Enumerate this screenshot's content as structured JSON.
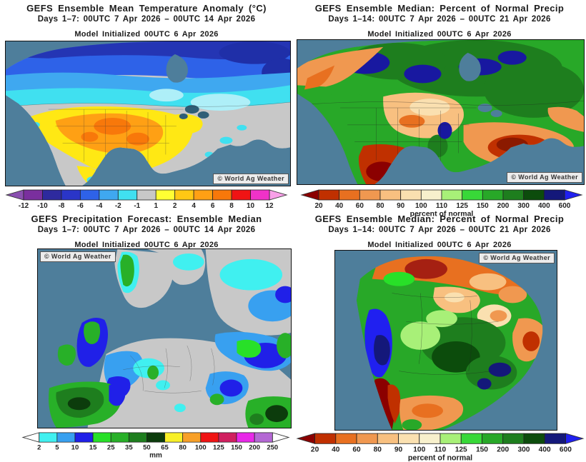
{
  "panels": [
    {
      "key": "north-america-temperature-anomaly",
      "title": "GEFS Ensemble Mean Temperature Anomaly (°C)",
      "subtitle": "Days 1–7: 00UTC 7 Apr 2026 – 00UTC 14 Apr 2026",
      "init_line": "Model Initialized 00UTC 6 Apr 2026",
      "region": "North America",
      "watermark": "© World Ag Weather",
      "watermark_position": "bottom-right",
      "colorbar": {
        "unit_label": "",
        "ticks": [
          "-12",
          "-10",
          "-8",
          "-6",
          "-4",
          "-2",
          "-1",
          "1",
          "2",
          "4",
          "6",
          "8",
          "10",
          "12"
        ],
        "segments": [
          "#7A2F9E",
          "#2E2A9E",
          "#2A35C8",
          "#2E62E8",
          "#3FA8F0",
          "#40E0F0",
          "#C8C8C8",
          "#FFFF33",
          "#FFC814",
          "#FFA014",
          "#F8780A",
          "#F01414",
          "#F032C8"
        ],
        "left_arrow": "#8A4FB0",
        "right_arrow": "#F8A0E8"
      }
    },
    {
      "key": "north-america-percent-normal-precip",
      "title": "GEFS Ensemble Median: Percent of Normal Precip",
      "subtitle": "Days 1–14: 00UTC 7 Apr 2026 – 00UTC 21 Apr 2026",
      "init_line": "Model Initialized 00UTC 6 Apr 2026",
      "region": "North America",
      "watermark": "© World Ag Weather",
      "watermark_position": "bottom-right",
      "colorbar": {
        "unit_label": "percent of normal",
        "ticks": [
          "20",
          "40",
          "60",
          "80",
          "90",
          "100",
          "110",
          "125",
          "150",
          "200",
          "300",
          "400",
          "600"
        ],
        "segments": [
          "#C03000",
          "#E87020",
          "#F09850",
          "#F8C080",
          "#FAE0B0",
          "#F7F0CC",
          "#A8F078",
          "#38D838",
          "#28A828",
          "#1E7E1E",
          "#0C4C0C",
          "#14187A"
        ],
        "left_arrow": "#8B0000",
        "right_arrow": "#2020F0"
      }
    },
    {
      "key": "europe-precipitation-forecast",
      "title": "GEFS Precipitation Forecast: Ensemble Median",
      "subtitle": "Days 1–7: 00UTC 7 Apr 2026 – 00UTC 14 Apr 2026",
      "init_line": "Model Initialized 00UTC 6 Apr 2026",
      "region": "Europe",
      "watermark": "© World Ag Weather",
      "watermark_position": "top-left",
      "colorbar": {
        "unit_label": "mm",
        "ticks": [
          "2",
          "5",
          "10",
          "15",
          "25",
          "35",
          "50",
          "65",
          "80",
          "100",
          "125",
          "150",
          "200",
          "250"
        ],
        "segments": [
          "#40F0F0",
          "#38A0F0",
          "#2020E8",
          "#28E028",
          "#28B028",
          "#1E7E1E",
          "#0C3C0C",
          "#F8F028",
          "#F8A028",
          "#F01414",
          "#D02060",
          "#E828E8",
          "#B468D4"
        ],
        "left_arrow": "#FFFFFF",
        "right_arrow": "#FFFFFF"
      }
    },
    {
      "key": "south-america-percent-normal-precip",
      "title": "GEFS Ensemble Median: Percent of Normal Precip",
      "subtitle": "Days 1–14: 00UTC 7 Apr 2026 – 00UTC 21 Apr 2026",
      "init_line": "Model Initialized 00UTC 6 Apr 2026",
      "region": "South America",
      "watermark": "© World Ag Weather",
      "watermark_position": "top-right",
      "colorbar": {
        "unit_label": "percent of normal",
        "ticks": [
          "20",
          "40",
          "60",
          "80",
          "90",
          "100",
          "110",
          "125",
          "150",
          "200",
          "300",
          "400",
          "600"
        ],
        "segments": [
          "#C03000",
          "#E87020",
          "#F09850",
          "#F8C080",
          "#FAE0B0",
          "#F7F0CC",
          "#A8F078",
          "#38D838",
          "#28A828",
          "#1E7E1E",
          "#0C4C0C",
          "#14187A"
        ],
        "left_arrow": "#8B0000",
        "right_arrow": "#2020F0"
      }
    }
  ],
  "style": {
    "ocean_color": "#4E7E9B",
    "land_neutral_color": "#C8C8C8"
  }
}
